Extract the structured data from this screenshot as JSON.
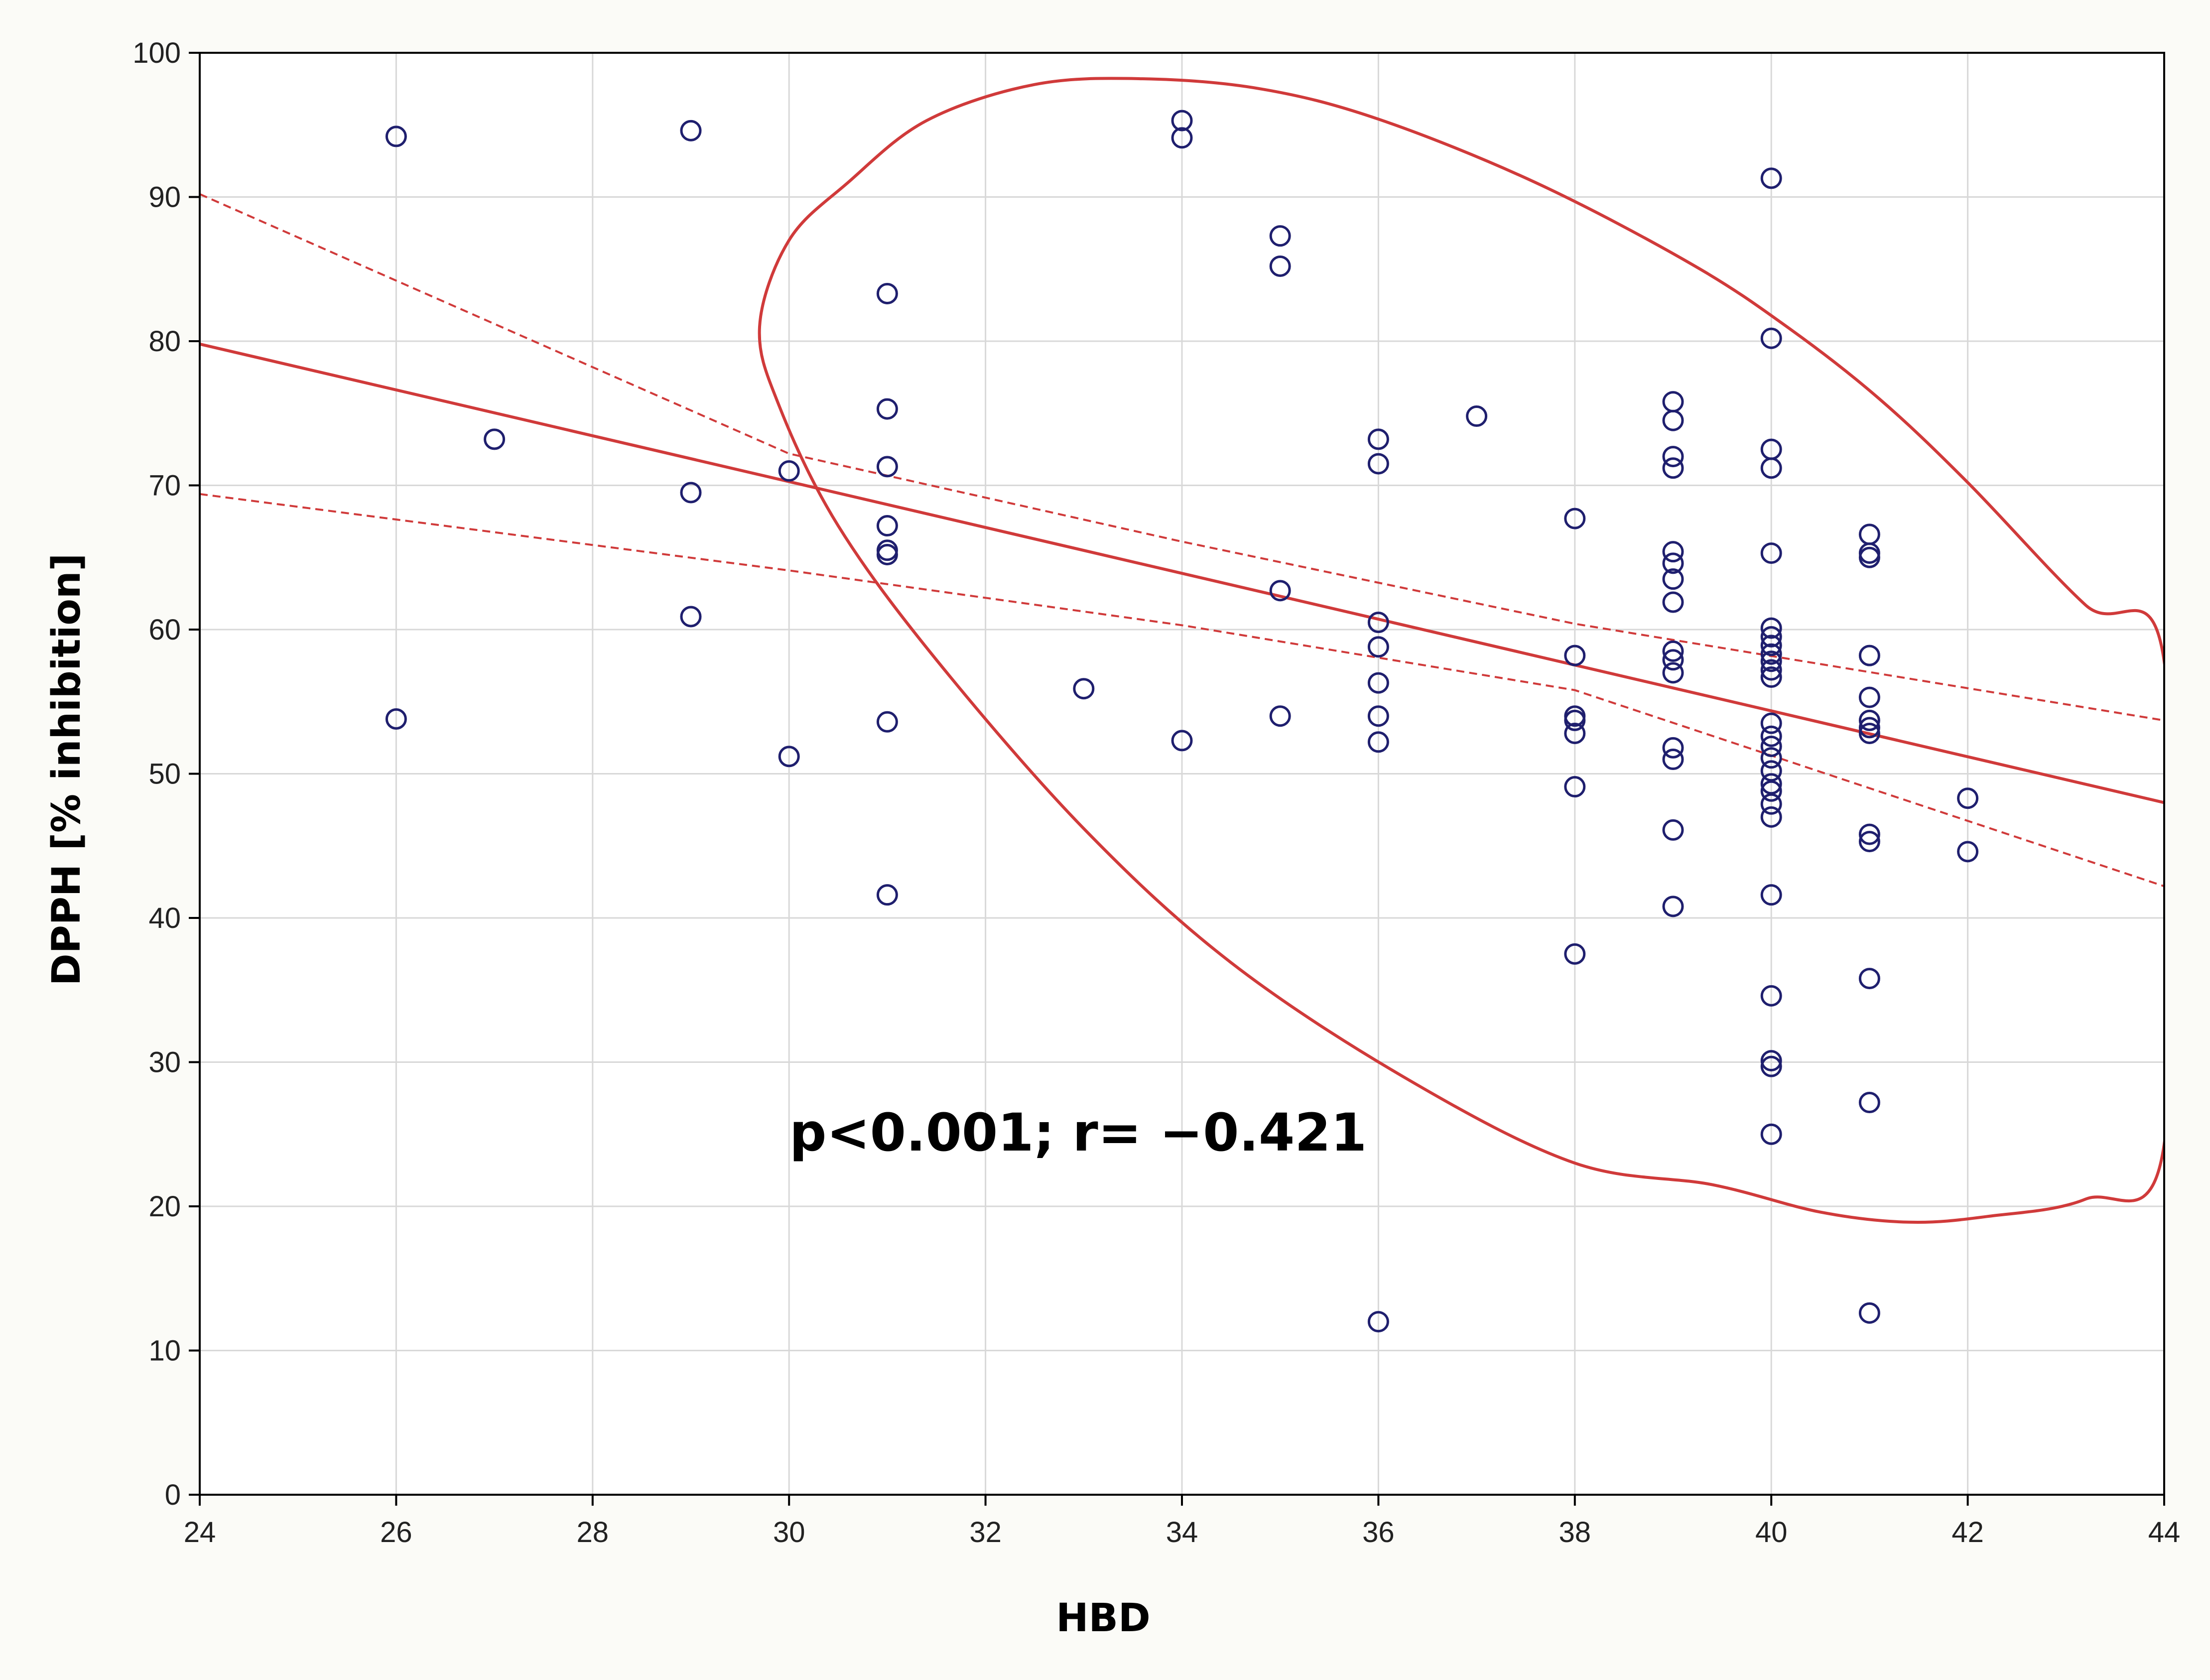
{
  "chart_data": {
    "type": "scatter",
    "xlabel": "HBD",
    "ylabel": "DPPH [% inhibition]",
    "xlim": [
      24,
      44
    ],
    "ylim": [
      0,
      100
    ],
    "x_ticks": [
      24,
      26,
      28,
      30,
      32,
      34,
      36,
      38,
      40,
      42,
      44
    ],
    "y_ticks": [
      0,
      10,
      20,
      30,
      40,
      50,
      60,
      70,
      80,
      90,
      100
    ],
    "grid": true,
    "annotation": "p<0.001; r= −0.421",
    "colors": {
      "points": "#1f1f6e",
      "fit": "#d03a3a",
      "grid": "#d8d8d8",
      "plot_bg": "#ffffff",
      "frame_bg": "#fbfbf7"
    },
    "points": [
      [
        26,
        94.2
      ],
      [
        26,
        53.8
      ],
      [
        27,
        73.2
      ],
      [
        29,
        94.6
      ],
      [
        29,
        69.5
      ],
      [
        29,
        60.9
      ],
      [
        30,
        71.0
      ],
      [
        30,
        51.2
      ],
      [
        31,
        83.3
      ],
      [
        31,
        75.3
      ],
      [
        31,
        71.3
      ],
      [
        31,
        67.2
      ],
      [
        31,
        65.5
      ],
      [
        31,
        65.2
      ],
      [
        31,
        53.6
      ],
      [
        31,
        41.6
      ],
      [
        33,
        55.9
      ],
      [
        34,
        95.3
      ],
      [
        34,
        94.1
      ],
      [
        34,
        52.3
      ],
      [
        35,
        87.3
      ],
      [
        35,
        85.2
      ],
      [
        35,
        62.7
      ],
      [
        35,
        54.0
      ],
      [
        36,
        73.2
      ],
      [
        36,
        71.5
      ],
      [
        36,
        60.5
      ],
      [
        36,
        58.8
      ],
      [
        36,
        56.3
      ],
      [
        36,
        54.0
      ],
      [
        36,
        52.2
      ],
      [
        36,
        12.0
      ],
      [
        37,
        74.8
      ],
      [
        38,
        67.7
      ],
      [
        38,
        58.2
      ],
      [
        38,
        54.0
      ],
      [
        38,
        53.7
      ],
      [
        38,
        52.8
      ],
      [
        38,
        49.1
      ],
      [
        38,
        37.5
      ],
      [
        39,
        75.8
      ],
      [
        39,
        74.5
      ],
      [
        39,
        72.0
      ],
      [
        39,
        71.2
      ],
      [
        39,
        65.4
      ],
      [
        39,
        64.6
      ],
      [
        39,
        63.5
      ],
      [
        39,
        61.9
      ],
      [
        39,
        58.5
      ],
      [
        39,
        57.9
      ],
      [
        39,
        57.0
      ],
      [
        39,
        51.8
      ],
      [
        39,
        51.0
      ],
      [
        39,
        46.1
      ],
      [
        39,
        40.8
      ],
      [
        40,
        91.3
      ],
      [
        40,
        80.2
      ],
      [
        40,
        72.5
      ],
      [
        40,
        71.2
      ],
      [
        40,
        65.3
      ],
      [
        40,
        60.1
      ],
      [
        40,
        59.5
      ],
      [
        40,
        58.9
      ],
      [
        40,
        58.3
      ],
      [
        40,
        57.8
      ],
      [
        40,
        57.2
      ],
      [
        40,
        56.7
      ],
      [
        40,
        53.5
      ],
      [
        40,
        52.6
      ],
      [
        40,
        51.9
      ],
      [
        40,
        51.1
      ],
      [
        40,
        50.2
      ],
      [
        40,
        49.3
      ],
      [
        40,
        48.8
      ],
      [
        40,
        47.9
      ],
      [
        40,
        47.0
      ],
      [
        40,
        41.6
      ],
      [
        40,
        34.6
      ],
      [
        40,
        30.1
      ],
      [
        40,
        29.7
      ],
      [
        40,
        25.0
      ],
      [
        41,
        66.6
      ],
      [
        41,
        65.3
      ],
      [
        41,
        65.0
      ],
      [
        41,
        58.2
      ],
      [
        41,
        55.3
      ],
      [
        41,
        53.7
      ],
      [
        41,
        53.2
      ],
      [
        41,
        52.8
      ],
      [
        41,
        45.8
      ],
      [
        41,
        45.3
      ],
      [
        41,
        35.8
      ],
      [
        41,
        27.2
      ],
      [
        41,
        12.6
      ],
      [
        42,
        48.3
      ],
      [
        42,
        44.6
      ]
    ],
    "regression_line": {
      "x": [
        24,
        44
      ],
      "y": [
        79.8,
        48.0
      ]
    },
    "confidence_band": {
      "upper": {
        "x": [
          24,
          30,
          34,
          38,
          44
        ],
        "y": [
          90.2,
          72.2,
          66.1,
          60.4,
          53.7
        ]
      },
      "lower": {
        "x": [
          24,
          30,
          34,
          38,
          44
        ],
        "y": [
          69.4,
          64.1,
          60.3,
          55.8,
          42.2
        ]
      }
    },
    "ellipse": {
      "x": [
        30.6,
        31.4,
        32.5,
        33.6,
        34.8,
        36.0,
        37.6,
        39.2,
        40.2,
        41.1,
        42.0,
        43.2,
        44.0,
        44.0,
        43.2,
        42.2,
        41.4,
        40.5,
        39.4,
        38.0,
        36.3,
        34.5,
        33.0,
        31.5,
        30.5,
        29.9,
        29.7,
        30.0
      ],
      "y": [
        91.0,
        95.3,
        97.8,
        98.2,
        97.5,
        95.4,
        91.0,
        85.3,
        80.8,
        76.0,
        70.2,
        61.7,
        57.8,
        24.3,
        20.5,
        19.3,
        18.9,
        19.6,
        21.5,
        23.0,
        28.8,
        36.9,
        46.2,
        57.9,
        67.2,
        75.5,
        81.0,
        87.0
      ]
    }
  }
}
